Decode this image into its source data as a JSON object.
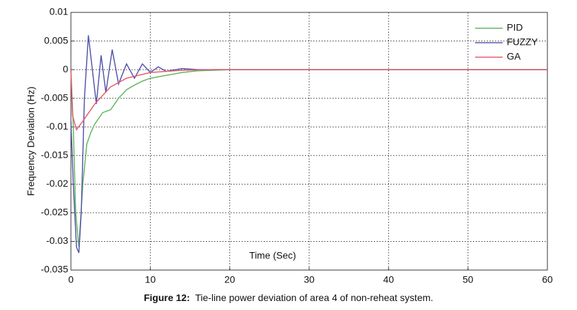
{
  "chart_data": {
    "type": "line",
    "xlabel": "Time (Sec)",
    "ylabel": "Frequency Deviation (Hz)",
    "caption_label": "Figure 12:",
    "caption": "Tie-line power deviation of area 4 of non-reheat system.",
    "xlim": [
      0,
      60
    ],
    "xticks": [
      0,
      10,
      20,
      30,
      40,
      50,
      60
    ],
    "ylim": [
      -0.035,
      0.01
    ],
    "yticks": [
      0.01,
      0.005,
      0,
      -0.005,
      -0.01,
      -0.015,
      -0.02,
      -0.025,
      -0.03,
      -0.035
    ],
    "grid": true,
    "legend": "upper right",
    "series": [
      {
        "name": "PID",
        "color": "#5fb65f",
        "x": [
          0,
          0.3,
          0.6,
          1,
          1.5,
          2,
          2.5,
          3,
          3.5,
          4,
          5,
          6,
          7,
          8,
          9,
          10,
          12,
          14,
          16,
          18,
          20,
          60
        ],
        "values": [
          0,
          -0.01,
          -0.025,
          -0.031,
          -0.02,
          -0.013,
          -0.011,
          -0.0095,
          -0.0085,
          -0.0075,
          -0.007,
          -0.005,
          -0.0035,
          -0.0027,
          -0.002,
          -0.0015,
          -0.001,
          -0.0005,
          -0.0002,
          -0.0001,
          0,
          0
        ]
      },
      {
        "name": "FUZZY",
        "color": "#5555aa",
        "x": [
          0,
          0.3,
          0.7,
          1,
          1.3,
          1.7,
          2.2,
          2.7,
          3.2,
          3.8,
          4.4,
          5.2,
          6,
          7,
          8,
          9,
          10,
          11,
          12,
          14,
          16,
          60
        ],
        "values": [
          -0.009,
          -0.02,
          -0.031,
          -0.032,
          -0.025,
          -0.005,
          0.006,
          0,
          -0.006,
          0.0025,
          -0.004,
          0.0035,
          -0.0025,
          0.001,
          -0.0015,
          0.001,
          -0.0005,
          0.0005,
          -0.0003,
          0.0002,
          0,
          0
        ]
      },
      {
        "name": "GA",
        "color": "#e55b6a",
        "x": [
          0,
          0.2,
          0.7,
          1.5,
          3,
          5,
          7,
          10,
          14,
          18,
          60
        ],
        "values": [
          0,
          -0.008,
          -0.0105,
          -0.009,
          -0.006,
          -0.003,
          -0.0015,
          -0.0005,
          -0.0001,
          0,
          0
        ]
      }
    ]
  }
}
